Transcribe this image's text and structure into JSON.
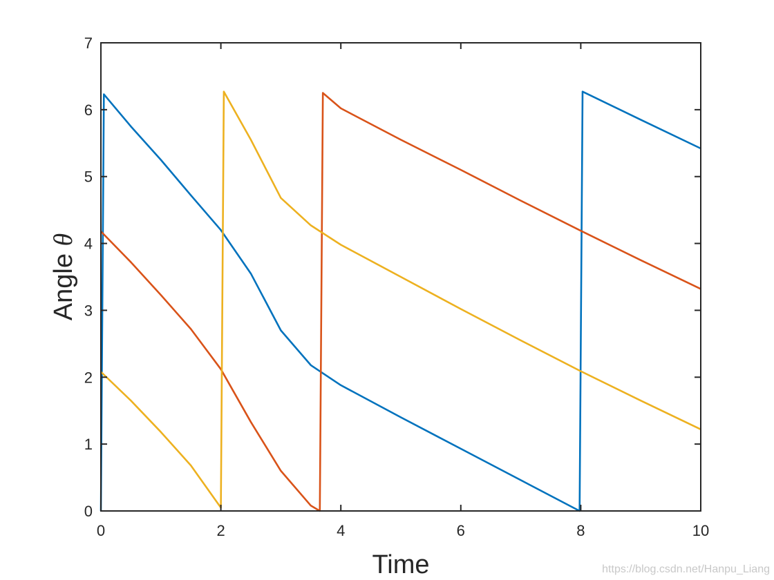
{
  "chart_data": {
    "type": "line",
    "xlabel": "Time",
    "ylabel_text": "Angle ",
    "ylabel_symbol": "θ",
    "xlim": [
      0,
      10
    ],
    "ylim": [
      0,
      7
    ],
    "xticks": [
      0,
      2,
      4,
      6,
      8,
      10
    ],
    "yticks": [
      0,
      1,
      2,
      3,
      4,
      5,
      6,
      7
    ],
    "grid": false,
    "series": [
      {
        "color": "#0072BD",
        "points": [
          [
            0,
            0
          ],
          [
            0.05,
            6.23
          ],
          [
            0.5,
            5.75
          ],
          [
            1,
            5.25
          ],
          [
            1.5,
            4.72
          ],
          [
            2,
            4.2
          ],
          [
            2.5,
            3.55
          ],
          [
            3,
            2.7
          ],
          [
            3.5,
            2.18
          ],
          [
            4,
            1.88
          ],
          [
            5,
            1.4
          ],
          [
            6,
            0.93
          ],
          [
            7,
            0.46
          ],
          [
            7.98,
            0.0
          ],
          [
            8.03,
            6.27
          ],
          [
            9,
            5.85
          ],
          [
            10,
            5.42
          ]
        ]
      },
      {
        "color": "#D95319",
        "points": [
          [
            0,
            4.18
          ],
          [
            0.5,
            3.72
          ],
          [
            1,
            3.23
          ],
          [
            1.5,
            2.72
          ],
          [
            2,
            2.12
          ],
          [
            2.5,
            1.33
          ],
          [
            3,
            0.6
          ],
          [
            3.5,
            0.08
          ],
          [
            3.65,
            0.0
          ],
          [
            3.7,
            6.25
          ],
          [
            4,
            6.02
          ],
          [
            5,
            5.55
          ],
          [
            6,
            5.1
          ],
          [
            7,
            4.64
          ],
          [
            8,
            4.19
          ],
          [
            9,
            3.75
          ],
          [
            10,
            3.32
          ]
        ]
      },
      {
        "color": "#EDB120",
        "points": [
          [
            0,
            2.08
          ],
          [
            0.5,
            1.65
          ],
          [
            1,
            1.18
          ],
          [
            1.5,
            0.68
          ],
          [
            2,
            0.05
          ],
          [
            2.05,
            6.27
          ],
          [
            2.5,
            5.55
          ],
          [
            3,
            4.68
          ],
          [
            3.5,
            4.27
          ],
          [
            4,
            3.98
          ],
          [
            5,
            3.5
          ],
          [
            6,
            3.02
          ],
          [
            7,
            2.55
          ],
          [
            8,
            2.09
          ],
          [
            9,
            1.65
          ],
          [
            10,
            1.22
          ]
        ]
      }
    ]
  },
  "watermark": "https://blog.csdn.net/Hanpu_Liang"
}
